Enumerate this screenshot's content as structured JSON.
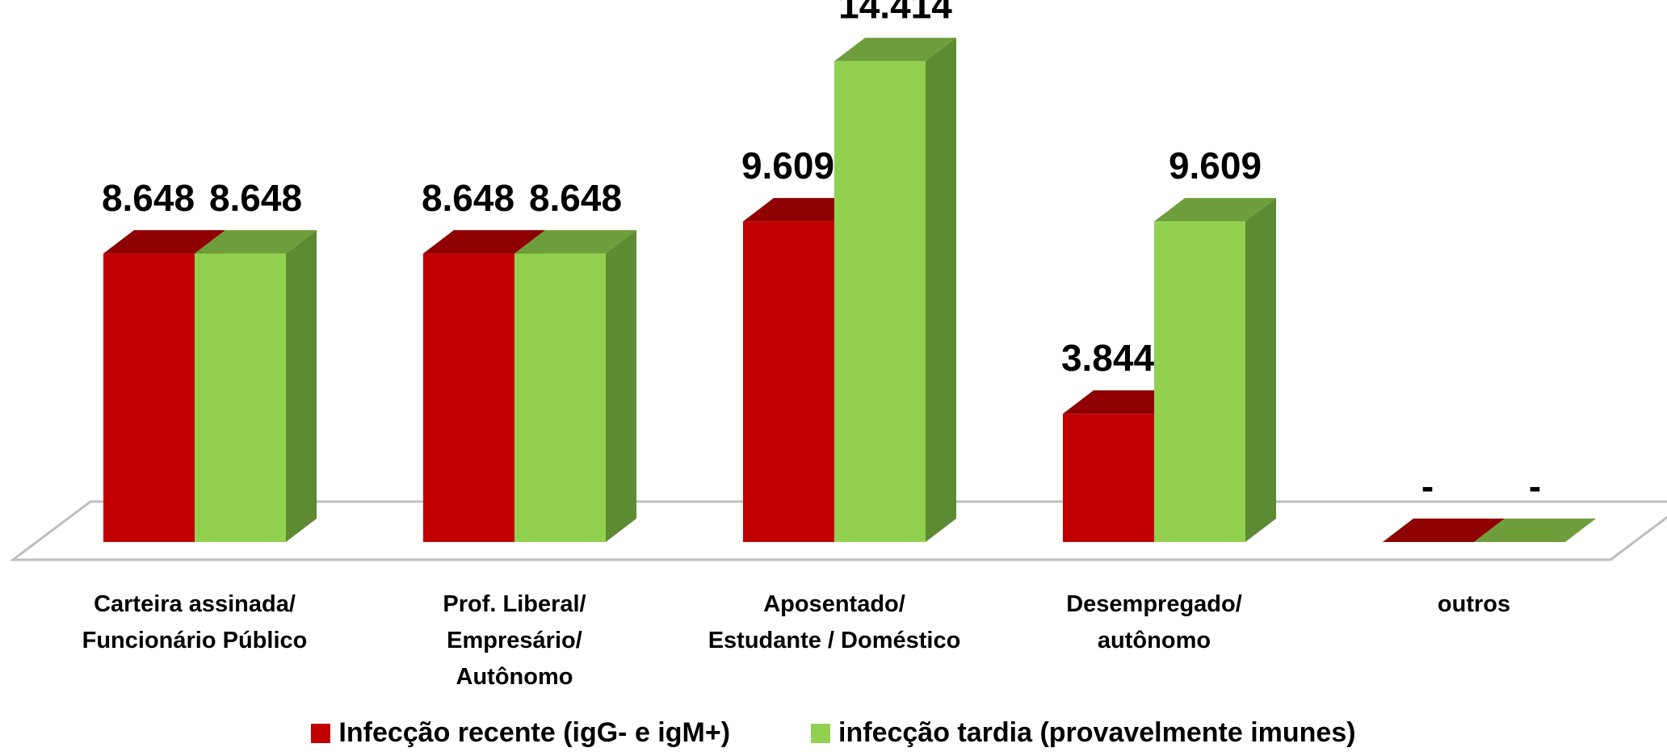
{
  "chart_data": {
    "type": "bar3d",
    "categories": [
      "Carteira assinada/\nFuncionário Público",
      "Prof. Liberal/\nEmpresário/\nAutônomo",
      "Aposentado/\nEstudante / Doméstico",
      "Desempregado/\nautônomo",
      "outros"
    ],
    "series": [
      {
        "name": "Infecção recente (igG- e igM+)",
        "color": "#c00000",
        "top_color": "#8f0000",
        "side_color": "#8f0000",
        "values": [
          8648,
          8648,
          9609,
          3844,
          0
        ],
        "value_labels": [
          "8.648",
          "8.648",
          "9.609",
          "3.844",
          "-"
        ]
      },
      {
        "name": "infecção tardia (provavelmente imunes)",
        "color": "#92d050",
        "top_color": "#6e9e3b",
        "side_color": "#5e8a33",
        "values": [
          8648,
          8648,
          14414,
          9609,
          0
        ],
        "value_labels": [
          "8.648",
          "8.648",
          "14.414",
          "9.609",
          "-"
        ]
      }
    ],
    "legend": "bottom"
  }
}
